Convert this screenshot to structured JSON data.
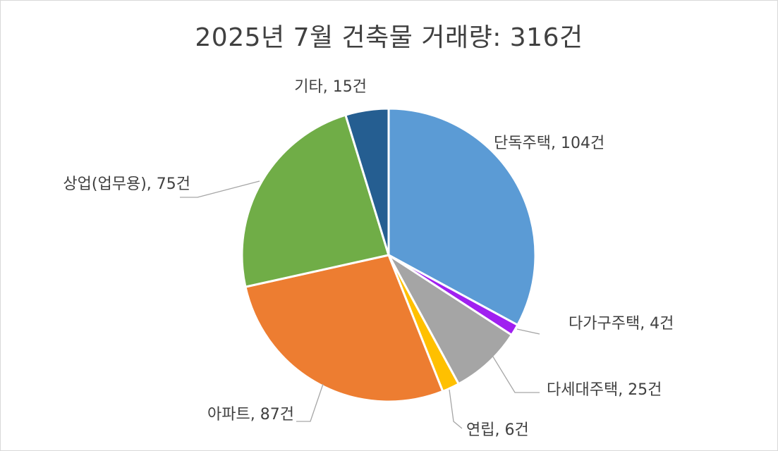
{
  "chart_data": {
    "type": "pie",
    "title": "2025년 7월 건축물 거래량: 316건",
    "start": "12 o'clock",
    "direction": "clockwise",
    "legend": "none",
    "slices": [
      {
        "name": "단독주택",
        "value": 104,
        "label": "단독주택, 104건",
        "color": "#5b9bd5"
      },
      {
        "name": "다가구주택",
        "value": 4,
        "label": "다가구주택, 4건",
        "color": "#a020f0"
      },
      {
        "name": "다세대주택",
        "value": 25,
        "label": "다세대주택, 25건",
        "color": "#a5a5a5"
      },
      {
        "name": "연립",
        "value": 6,
        "label": "연립, 6건",
        "color": "#ffc000"
      },
      {
        "name": "아파트",
        "value": 87,
        "label": "아파트, 87건",
        "color": "#ed7d31"
      },
      {
        "name": "상업(업무용)",
        "value": 75,
        "label": "상업(업무용), 75건",
        "color": "#70ad47"
      },
      {
        "name": "기타",
        "value": 15,
        "label": "기타, 15건",
        "color": "#255e91"
      }
    ]
  }
}
